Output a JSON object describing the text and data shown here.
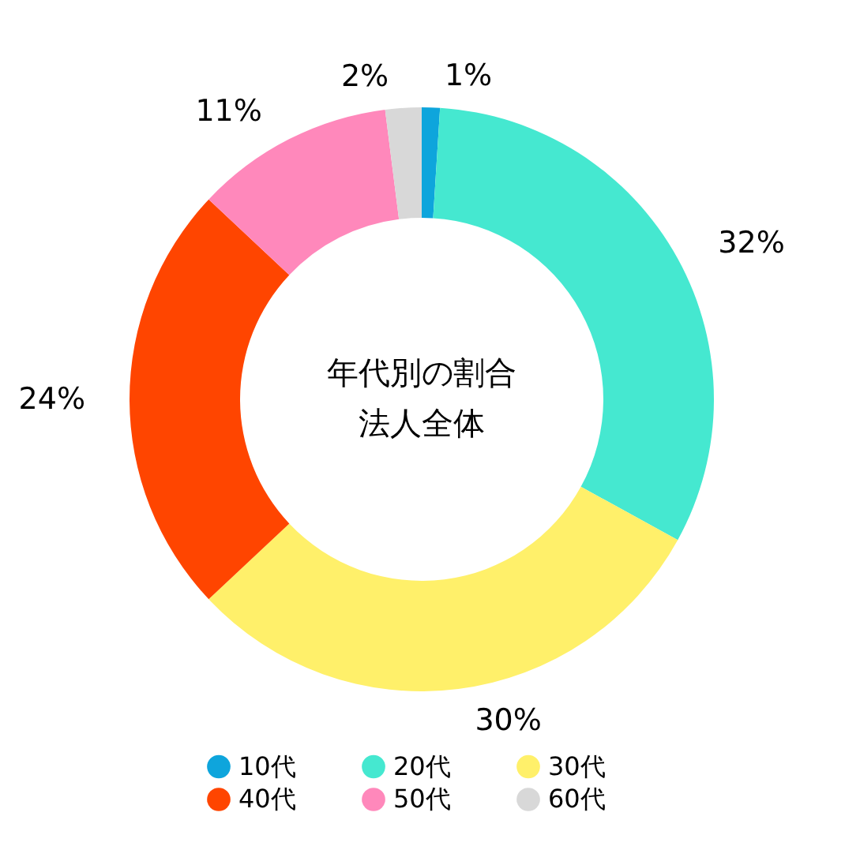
{
  "chart_data": {
    "type": "donut",
    "title": "年代別の割合",
    "subtitle": "法人全体",
    "categories": [
      "10代",
      "20代",
      "30代",
      "40代",
      "50代",
      "60代"
    ],
    "values": [
      1,
      32,
      30,
      24,
      11,
      2
    ],
    "colors": [
      "#0ea5dc",
      "#45e8d0",
      "#fff06a",
      "#ff4500",
      "#ff88bb",
      "#d8d8d8"
    ],
    "value_labels": [
      "1%",
      "32%",
      "30%",
      "24%",
      "11%",
      "2%"
    ],
    "legend": "bottom"
  }
}
